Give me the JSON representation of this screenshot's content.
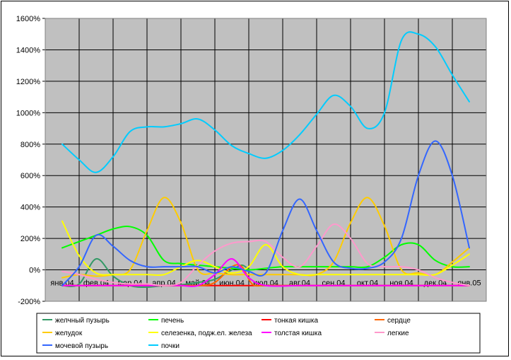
{
  "chart_data": {
    "type": "line",
    "categories": [
      "янв.04",
      "фев.04",
      "мар.04",
      "апр.04",
      "май.04",
      "июн.04",
      "июл.04",
      "авг.04",
      "сен.04",
      "окт.04",
      "ноя.04",
      "дек.04",
      "янв.05"
    ],
    "ylim": [
      -200,
      1600
    ],
    "yticks": [
      -200,
      0,
      200,
      400,
      600,
      800,
      1000,
      1200,
      1400,
      1600
    ],
    "ytick_labels": [
      "-200%",
      "0%",
      "200%",
      "400%",
      "600%",
      "800%",
      "1000%",
      "1200%",
      "1400%",
      "1600%"
    ],
    "grid": true,
    "plot_background": "#c0c0c0",
    "legend_position": "bottom",
    "series": [
      {
        "name": "желчный пузырь",
        "color": "#339966",
        "points": [
          [
            0,
            -100
          ],
          [
            0.5,
            -90
          ],
          [
            1,
            70
          ],
          [
            1.5,
            -40
          ],
          [
            2,
            -100
          ],
          [
            2.5,
            -110
          ],
          [
            3,
            -100
          ],
          [
            3.5,
            -95
          ],
          [
            4,
            -80
          ],
          [
            4.5,
            -60
          ],
          [
            5,
            0
          ],
          [
            5.3,
            30
          ],
          [
            5.5,
            0
          ]
        ]
      },
      {
        "name": "печень",
        "color": "#00ff00",
        "points": [
          [
            0,
            140
          ],
          [
            0.5,
            180
          ],
          [
            1,
            220
          ],
          [
            1.5,
            260
          ],
          [
            2,
            275
          ],
          [
            2.5,
            220
          ],
          [
            3,
            60
          ],
          [
            3.5,
            40
          ],
          [
            4,
            30
          ],
          [
            4.5,
            20
          ],
          [
            5,
            10
          ],
          [
            5.5,
            0
          ],
          [
            6,
            10
          ],
          [
            6.5,
            20
          ],
          [
            7,
            20
          ],
          [
            7.5,
            20
          ],
          [
            8,
            20
          ],
          [
            8.5,
            20
          ],
          [
            9,
            20
          ],
          [
            9.5,
            80
          ],
          [
            10,
            160
          ],
          [
            10.5,
            160
          ],
          [
            11,
            60
          ],
          [
            11.5,
            20
          ],
          [
            12,
            20
          ]
        ]
      },
      {
        "name": "тонкая кишка",
        "color": "#ff0000",
        "points": [
          [
            0,
            -100
          ],
          [
            1,
            -100
          ],
          [
            2,
            -100
          ],
          [
            3,
            -100
          ],
          [
            4,
            -100
          ],
          [
            5,
            -100
          ],
          [
            6,
            -100
          ],
          [
            7,
            -100
          ],
          [
            8,
            -100
          ],
          [
            9,
            -100
          ],
          [
            10,
            -100
          ],
          [
            11,
            -100
          ],
          [
            12,
            -100
          ]
        ]
      },
      {
        "name": "сердце",
        "color": "#ff6600",
        "points": [
          [
            0,
            -100
          ],
          [
            1,
            -100
          ],
          [
            2,
            -100
          ],
          [
            3,
            -100
          ],
          [
            4,
            -100
          ],
          [
            4.5,
            -80
          ],
          [
            5,
            20
          ],
          [
            5.3,
            20
          ],
          [
            5.6,
            -90
          ],
          [
            6,
            -100
          ],
          [
            7,
            -100
          ],
          [
            8,
            -100
          ],
          [
            9,
            -100
          ],
          [
            10,
            -100
          ],
          [
            11,
            -100
          ],
          [
            11.5,
            -100
          ],
          [
            12,
            -100
          ]
        ]
      },
      {
        "name": "желудок",
        "color": "#ffcc00",
        "points": [
          [
            0,
            -50
          ],
          [
            0.5,
            -30
          ],
          [
            1,
            -40
          ],
          [
            1.5,
            -30
          ],
          [
            2,
            0
          ],
          [
            2.5,
            250
          ],
          [
            3,
            460
          ],
          [
            3.5,
            300
          ],
          [
            4,
            0
          ],
          [
            4.5,
            -20
          ],
          [
            5,
            -30
          ],
          [
            5.5,
            -30
          ],
          [
            6,
            -30
          ],
          [
            6.5,
            -30
          ],
          [
            7,
            -30
          ],
          [
            7.5,
            -30
          ],
          [
            8,
            50
          ],
          [
            8.5,
            300
          ],
          [
            9,
            460
          ],
          [
            9.5,
            280
          ],
          [
            10,
            0
          ],
          [
            10.5,
            -20
          ],
          [
            11,
            -30
          ],
          [
            11.5,
            50
          ],
          [
            12,
            140
          ]
        ]
      },
      {
        "name": "селезенка, подж.ел. железа",
        "color": "#ffff00",
        "points": [
          [
            0,
            310
          ],
          [
            0.5,
            90
          ],
          [
            1,
            -20
          ],
          [
            1.5,
            -30
          ],
          [
            2,
            -30
          ],
          [
            2.5,
            -30
          ],
          [
            3,
            -30
          ],
          [
            3.5,
            20
          ],
          [
            4,
            60
          ],
          [
            4.5,
            20
          ],
          [
            5,
            -20
          ],
          [
            5.5,
            20
          ],
          [
            6,
            160
          ],
          [
            6.5,
            20
          ],
          [
            7,
            -30
          ],
          [
            7.5,
            -30
          ],
          [
            8,
            -30
          ],
          [
            8.5,
            -30
          ],
          [
            9,
            -30
          ],
          [
            9.5,
            -30
          ],
          [
            10,
            -30
          ],
          [
            10.5,
            -30
          ],
          [
            11,
            -30
          ],
          [
            11.5,
            30
          ],
          [
            12,
            100
          ]
        ]
      },
      {
        "name": "толстая кишка",
        "color": "#ff00ff",
        "points": [
          [
            0,
            -100
          ],
          [
            1,
            -100
          ],
          [
            2,
            -100
          ],
          [
            3,
            -100
          ],
          [
            3.5,
            -100
          ],
          [
            4,
            -100
          ],
          [
            4.5,
            -30
          ],
          [
            5,
            70
          ],
          [
            5.5,
            -50
          ],
          [
            6,
            -100
          ],
          [
            7,
            -100
          ],
          [
            8,
            -100
          ],
          [
            9,
            -100
          ],
          [
            10,
            -100
          ],
          [
            11,
            -100
          ],
          [
            12,
            -100
          ]
        ]
      },
      {
        "name": "легкие",
        "color": "#ff99cc",
        "points": [
          [
            0,
            -10
          ],
          [
            0.5,
            -30
          ],
          [
            1,
            -60
          ],
          [
            1.5,
            -80
          ],
          [
            2,
            -90
          ],
          [
            2.5,
            -90
          ],
          [
            3,
            -100
          ],
          [
            3.5,
            -80
          ],
          [
            4,
            30
          ],
          [
            4.5,
            120
          ],
          [
            5,
            170
          ],
          [
            5.5,
            180
          ],
          [
            6,
            180
          ],
          [
            6.5,
            80
          ],
          [
            7,
            20
          ],
          [
            7.5,
            150
          ],
          [
            8,
            290
          ],
          [
            8.5,
            200
          ],
          [
            9,
            40
          ],
          [
            9.5,
            20
          ],
          [
            10,
            20
          ],
          [
            10.5,
            0
          ],
          [
            11,
            -50
          ],
          [
            11.5,
            -80
          ],
          [
            12,
            -100
          ]
        ]
      },
      {
        "name": "мочевой пузырь",
        "color": "#3366ff",
        "points": [
          [
            0,
            -100
          ],
          [
            0.5,
            20
          ],
          [
            1,
            220
          ],
          [
            1.5,
            150
          ],
          [
            2,
            60
          ],
          [
            2.5,
            20
          ],
          [
            3,
            20
          ],
          [
            3.5,
            20
          ],
          [
            4,
            20
          ],
          [
            4.5,
            -20
          ],
          [
            5,
            20
          ],
          [
            5.5,
            -10
          ],
          [
            6,
            -20
          ],
          [
            6.5,
            250
          ],
          [
            7,
            450
          ],
          [
            7.5,
            250
          ],
          [
            8,
            50
          ],
          [
            8.5,
            10
          ],
          [
            9,
            10
          ],
          [
            9.5,
            50
          ],
          [
            10,
            200
          ],
          [
            10.5,
            600
          ],
          [
            11,
            820
          ],
          [
            11.5,
            600
          ],
          [
            12,
            140
          ]
        ]
      },
      {
        "name": "почки",
        "color": "#00ccff",
        "points": [
          [
            0,
            800
          ],
          [
            0.5,
            700
          ],
          [
            1,
            620
          ],
          [
            1.5,
            720
          ],
          [
            2,
            880
          ],
          [
            2.5,
            910
          ],
          [
            3,
            910
          ],
          [
            3.5,
            930
          ],
          [
            4,
            960
          ],
          [
            4.5,
            890
          ],
          [
            5,
            790
          ],
          [
            5.5,
            740
          ],
          [
            6,
            710
          ],
          [
            6.5,
            760
          ],
          [
            7,
            860
          ],
          [
            7.5,
            990
          ],
          [
            8,
            1110
          ],
          [
            8.5,
            1040
          ],
          [
            9,
            900
          ],
          [
            9.5,
            1000
          ],
          [
            10,
            1460
          ],
          [
            10.5,
            1500
          ],
          [
            11,
            1420
          ],
          [
            11.5,
            1240
          ],
          [
            12,
            1070
          ]
        ]
      }
    ]
  }
}
